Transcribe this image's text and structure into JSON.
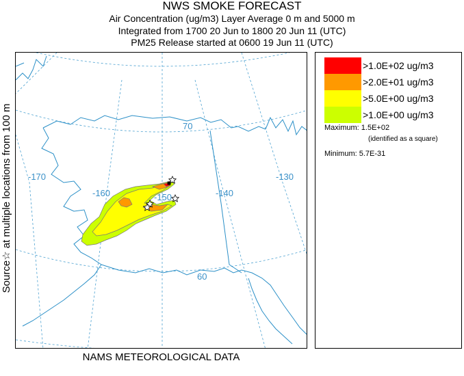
{
  "header": {
    "title": "NWS SMOKE FORECAST",
    "line2": "Air Concentration (ug/m3) Layer Average    0 m and  5000 m",
    "line3": "Integrated from 1700 20 Jun to 1800 20 Jun 11 (UTC)",
    "line4": "PM25 Release started at 0600 19 Jun 11 (UTC)"
  },
  "side_label": "Source☆ at multiple locations  from   100 m",
  "footer": "NAMS METEOROLOGICAL DATA",
  "map": {
    "lon_labels": [
      "-170",
      "-160",
      "-150",
      "-140",
      "-130"
    ],
    "lat_labels": [
      "70",
      "60"
    ],
    "colors": {
      "coast": "#2a8fc7",
      "grid": "#4aa0d0",
      "label": "#3a90c8"
    }
  },
  "legend": {
    "items": [
      {
        "label": ">1.0E+02 ug/m3",
        "color": "#ff0000"
      },
      {
        "label": ">2.0E+01 ug/m3",
        "color": "#ff9900"
      },
      {
        "label": ">5.0E+00 ug/m3",
        "color": "#ffff00"
      },
      {
        "label": ">1.0E+00 ug/m3",
        "color": "#ccff00"
      }
    ],
    "maximum": "Maximum: 1.5E+02",
    "maximum_note": "(identified as a square)",
    "minimum": "Minimum: 5.7E-31"
  }
}
